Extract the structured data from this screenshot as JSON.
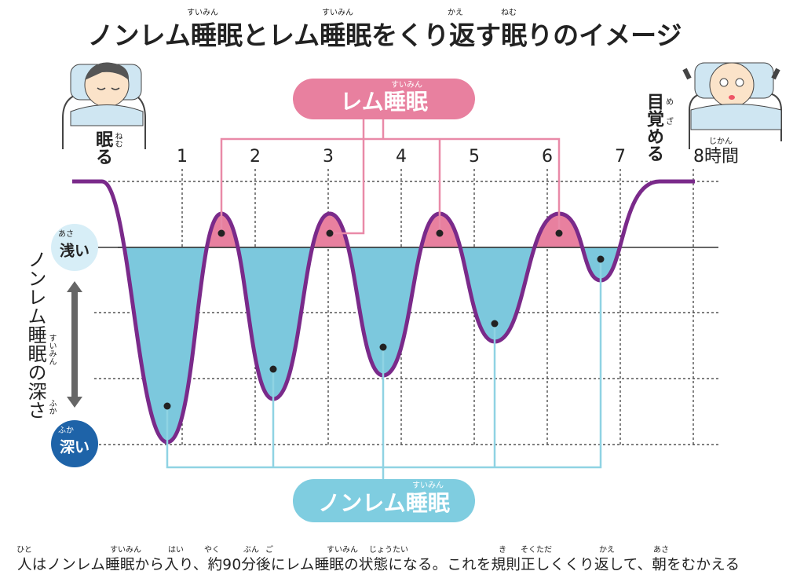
{
  "header": {
    "title": "ノンレム睡眠とレム睡眠をくり返す眠りのイメージ",
    "title_ruby": [
      "すいみん",
      "すいみん",
      "かえ",
      "ねむ"
    ]
  },
  "labels": {
    "sleep": "眠る",
    "sleep_ruby": "ねむ",
    "wake": "目覚める",
    "wake_ruby": "め",
    "wake_ruby2": "ざ",
    "shallow": "浅い",
    "shallow_ruby": "あさ",
    "deep": "深い",
    "deep_ruby": "ふか",
    "depth": "ノンレム睡眠の深さ",
    "depth_ruby": "すいみん",
    "depth_ruby2": "ふか",
    "rem": "レム睡眠",
    "rem_ruby": "すいみん",
    "nonrem": "ノンレム睡眠",
    "nonrem_ruby": "すいみん"
  },
  "hours": [
    "1",
    "2",
    "3",
    "4",
    "5",
    "6",
    "7",
    "8時間"
  ],
  "hours_ruby": "じかん",
  "caption": {
    "text": "人はノンレム睡眠から入り、約90分後にレム睡眠の状態になる。これを規則正しくくり返して、朝をむかえる",
    "ruby": [
      "ひと",
      "すいみん",
      "はい",
      "やく",
      "ぶん",
      "ご",
      "すいみん",
      "じょうたい",
      "き",
      "そくただ",
      "かえ",
      "あさ"
    ]
  }
}
